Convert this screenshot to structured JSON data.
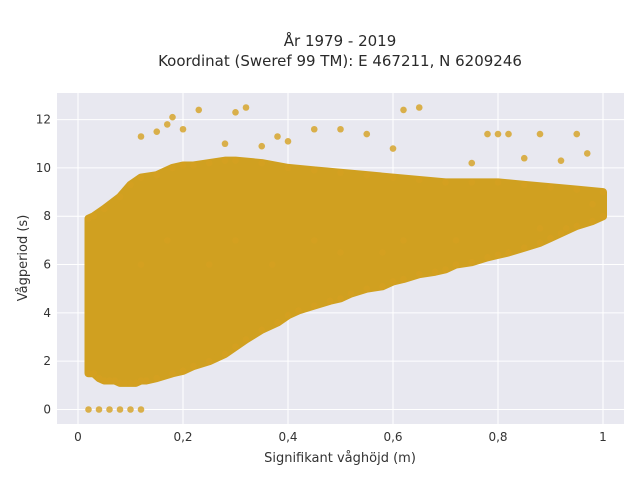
{
  "chart_data": {
    "type": "scatter",
    "title_line1": "År 1979 - 2019",
    "title_line2": "Koordinat (Sweref 99 TM): E 467211, N 6209246",
    "xlabel": "Signifikant våghöjd (m)",
    "ylabel": "Vågperiod (s)",
    "x_ticks": [
      "0",
      "0,2",
      "0,4",
      "0,6",
      "0,8",
      "1"
    ],
    "y_ticks": [
      "0",
      "2",
      "4",
      "6",
      "8",
      "10",
      "12"
    ],
    "xlim": [
      -0.04,
      1.04
    ],
    "ylim": [
      -0.6,
      13.1
    ],
    "grid": true,
    "colors": {
      "plot_background": "#e8e8f0",
      "marker": "#d4a020",
      "marker_dense": "#d0a020"
    },
    "series": [
      {
        "x": [
          0.02,
          0.03,
          0.04,
          0.05,
          0.06,
          0.07,
          0.08,
          0.09,
          0.1,
          0.11,
          0.12,
          0.13,
          0.15,
          0.18,
          0.2,
          0.22,
          0.25,
          0.28,
          0.3,
          0.32,
          0.35,
          0.38,
          0.4,
          0.42,
          0.45,
          0.48,
          0.5,
          0.52,
          0.55,
          0.58,
          0.6,
          0.62,
          0.65,
          0.68,
          0.7,
          0.72,
          0.75,
          0.78,
          0.8,
          0.82,
          0.85,
          0.88,
          0.9,
          0.92,
          0.95,
          0.98,
          1.0,
          0.02,
          0.03,
          0.05,
          0.08,
          0.1,
          0.12,
          0.15,
          0.18,
          0.2,
          0.22,
          0.25,
          0.28,
          0.3,
          0.35,
          0.4,
          0.45,
          0.5,
          0.55,
          0.6,
          0.65,
          0.7,
          0.75,
          0.8,
          0.85,
          0.9,
          0.95,
          1.0,
          0.12,
          0.15,
          0.17,
          0.18,
          0.2,
          0.23,
          0.28,
          0.3,
          0.32,
          0.35,
          0.38,
          0.4,
          0.45,
          0.5,
          0.55,
          0.6,
          0.62,
          0.65,
          0.75,
          0.78,
          0.8,
          0.82,
          0.85,
          0.88,
          0.92,
          0.95,
          0.97,
          0.12,
          0.17,
          0.25,
          0.3,
          0.37,
          0.45,
          0.5,
          0.58,
          0.62,
          0.72,
          0.88,
          0.93,
          0.98,
          0.02,
          0.04,
          0.06,
          0.08,
          0.1,
          0.12
        ],
        "y": [
          1.5,
          1.5,
          1.3,
          1.2,
          1.2,
          1.2,
          1.1,
          1.1,
          1.1,
          1.1,
          1.2,
          1.2,
          1.3,
          1.5,
          1.6,
          1.8,
          2.0,
          2.3,
          2.6,
          2.9,
          3.3,
          3.6,
          3.9,
          4.1,
          4.3,
          4.5,
          4.6,
          4.8,
          5.0,
          5.1,
          5.3,
          5.4,
          5.6,
          5.7,
          5.8,
          6.0,
          6.1,
          6.3,
          6.4,
          6.5,
          6.7,
          6.9,
          7.1,
          7.3,
          7.6,
          7.8,
          8.0,
          7.9,
          8.0,
          8.3,
          8.8,
          9.3,
          9.6,
          9.7,
          10.0,
          10.1,
          10.1,
          10.2,
          10.3,
          10.3,
          10.2,
          10.0,
          9.9,
          9.8,
          9.7,
          9.6,
          9.5,
          9.4,
          9.4,
          9.4,
          9.3,
          9.2,
          9.1,
          9.0,
          11.3,
          11.5,
          11.8,
          12.1,
          11.6,
          12.4,
          11.0,
          12.3,
          12.5,
          10.9,
          11.3,
          11.1,
          11.6,
          11.6,
          11.4,
          10.8,
          12.4,
          12.5,
          10.2,
          11.4,
          11.4,
          11.4,
          10.4,
          11.4,
          10.3,
          11.4,
          10.6,
          6.0,
          7.0,
          6.0,
          7.0,
          6.0,
          7.0,
          6.5,
          6.5,
          7.0,
          7.0,
          7.5,
          7.5,
          8.5,
          0.0,
          0.0,
          0.0,
          0.0,
          0.0,
          0.0
        ]
      }
    ]
  }
}
